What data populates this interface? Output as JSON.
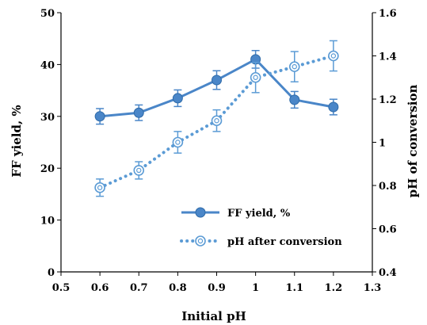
{
  "chart_data": {
    "type": "line",
    "x": [
      0.6,
      0.7,
      0.8,
      0.9,
      1.0,
      1.1,
      1.2
    ],
    "xlabel": "Initial pH",
    "ylabel": "FF yield, %",
    "y2label": "pH of conversion",
    "xlim": [
      0.5,
      1.3
    ],
    "ylim": [
      0,
      50
    ],
    "y2lim": [
      0.4,
      1.6
    ],
    "xticks": [
      "0.5",
      "0.6",
      "0.7",
      "0.8",
      "0.9",
      "1",
      "1.1",
      "1.2",
      "1.3"
    ],
    "yticks": [
      "0",
      "10",
      "20",
      "30",
      "40",
      "50"
    ],
    "y2ticks": [
      "0.4",
      "0.6",
      "0.8",
      "1",
      "1.2",
      "1.4",
      "1.6"
    ],
    "grid": false,
    "legend_position": "lower-right",
    "series": [
      {
        "name": "FF yield, %",
        "axis": "left",
        "style": "solid",
        "marker": "filled-circle",
        "color": "#4a86c8",
        "values": [
          30.0,
          30.7,
          33.5,
          37.0,
          41.0,
          33.2,
          31.8
        ],
        "errors": [
          1.5,
          1.5,
          1.6,
          1.8,
          1.7,
          1.6,
          1.5
        ]
      },
      {
        "name": "pH after conversion",
        "axis": "right",
        "style": "dotted",
        "marker": "open-circle",
        "color": "#5b9bd5",
        "values": [
          0.79,
          0.87,
          1.0,
          1.1,
          1.3,
          1.35,
          1.4
        ],
        "errors": [
          0.04,
          0.04,
          0.05,
          0.05,
          0.07,
          0.07,
          0.07
        ]
      }
    ]
  }
}
